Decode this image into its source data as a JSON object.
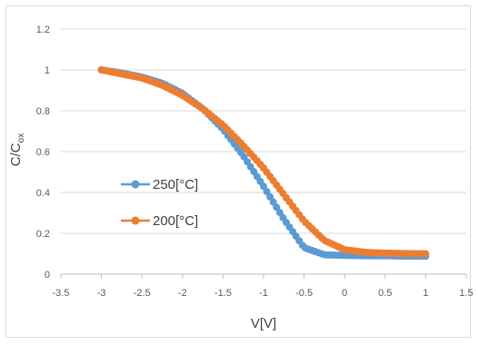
{
  "chart_data": {
    "type": "scatter",
    "title": "",
    "xlabel": "V[V]",
    "ylabel_main": "C/C",
    "ylabel_sub": "ox",
    "xlim": [
      -3.5,
      1.5
    ],
    "ylim": [
      0,
      1.2
    ],
    "x_ticks": [
      -3.5,
      -3,
      -2.5,
      -2,
      -1.5,
      -1,
      -0.5,
      0,
      0.5,
      1,
      1.5
    ],
    "x_tick_labels": [
      "-3.5",
      "-3",
      "-2.5",
      "-2",
      "-1.5",
      "-1",
      "-0.5",
      "0",
      "0.5",
      "1",
      "1.5"
    ],
    "y_ticks": [
      0,
      0.2,
      0.4,
      0.6,
      0.8,
      1,
      1.2
    ],
    "y_tick_labels": [
      "0",
      "0.2",
      "0.4",
      "0.6",
      "0.8",
      "1",
      "1.2"
    ],
    "grid": "horizontal",
    "legend_position": "center-left",
    "series": [
      {
        "name": "250[°C]",
        "color": "#5b9bd5",
        "x": [
          -3.0,
          -2.75,
          -2.5,
          -2.25,
          -2.0,
          -1.75,
          -1.5,
          -1.25,
          -1.0,
          -0.75,
          -0.5,
          -0.25,
          0.0,
          0.25,
          0.5,
          0.75,
          1.0
        ],
        "y": [
          1.0,
          0.985,
          0.965,
          0.935,
          0.885,
          0.81,
          0.71,
          0.58,
          0.43,
          0.27,
          0.13,
          0.095,
          0.092,
          0.09,
          0.09,
          0.088,
          0.088
        ]
      },
      {
        "name": "200[°C]",
        "color": "#ed7d31",
        "x": [
          -3.0,
          -2.75,
          -2.5,
          -2.25,
          -2.0,
          -1.75,
          -1.5,
          -1.25,
          -1.0,
          -0.75,
          -0.5,
          -0.25,
          0.0,
          0.25,
          0.5,
          0.75,
          1.0
        ],
        "y": [
          1.0,
          0.98,
          0.96,
          0.925,
          0.875,
          0.81,
          0.73,
          0.63,
          0.52,
          0.39,
          0.26,
          0.165,
          0.12,
          0.107,
          0.103,
          0.101,
          0.1
        ]
      }
    ]
  }
}
